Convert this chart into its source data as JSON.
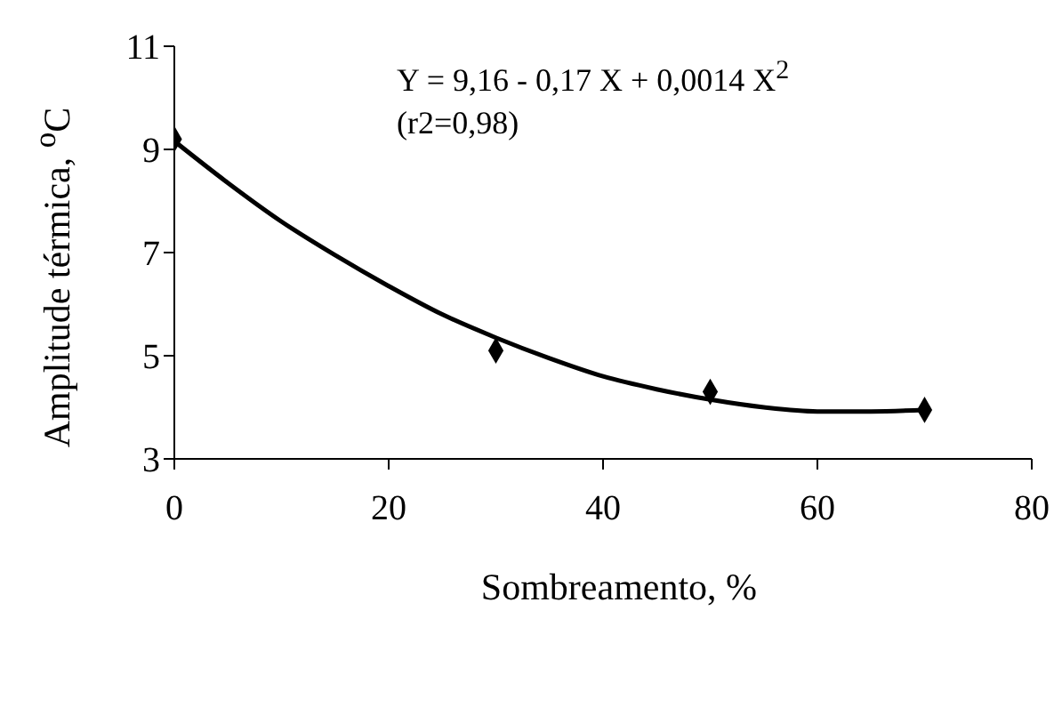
{
  "chart_data": {
    "type": "scatter",
    "xlabel": "Sombreamento, %",
    "ylabel": "Amplitude térmica, $^{o}$C",
    "xlim": [
      0,
      80
    ],
    "xticks": [
      0,
      20,
      40,
      60,
      80
    ],
    "ylim": [
      3,
      11
    ],
    "yticks": [
      3,
      5,
      7,
      9,
      11
    ],
    "marker": "diamond",
    "annotations": [
      "Y = 9,16 - 0,17 X + 0,0014 X$^{2}$",
      "(r2=0,98)"
    ],
    "series": [
      {
        "color": "#000000",
        "x": [
          0,
          30,
          50,
          70
        ],
        "values": [
          9.2,
          5.1,
          4.3,
          3.95
        ]
      },
      {
        "type": "line",
        "color": "#000000",
        "marker": "none",
        "line_style": "solid",
        "x": [
          0,
          5,
          10,
          15,
          20,
          25,
          30,
          35,
          40,
          45,
          50,
          55,
          60,
          65,
          70
        ],
        "values": [
          9.16,
          8.35,
          7.6,
          6.95,
          6.35,
          5.8,
          5.35,
          4.95,
          4.6,
          4.35,
          4.15,
          4.0,
          3.92,
          3.92,
          3.95
        ]
      }
    ]
  }
}
